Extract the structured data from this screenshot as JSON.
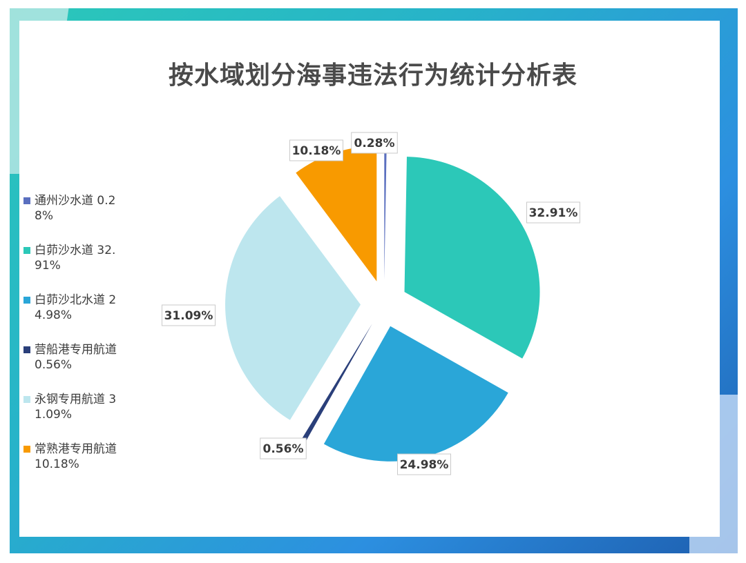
{
  "title": "按水域划分海事违法行为统计分析表",
  "chart_data": {
    "type": "pie",
    "title": "按水域划分海事违法行为统计分析表",
    "legend_position": "left",
    "exploded": true,
    "slices": [
      {
        "name": "通州沙水道",
        "value": 0.28,
        "label": "0.28%",
        "color": "#5a6fbf",
        "legend": "通州沙水道 0.28%"
      },
      {
        "name": "白茆沙水道",
        "value": 32.91,
        "label": "32.91%",
        "color": "#2cc8b8",
        "legend": "白茆沙水道 32.91%"
      },
      {
        "name": "白茆沙北水道",
        "value": 24.98,
        "label": "24.98%",
        "color": "#2aa6d8",
        "legend": "白茆沙北水道 24.98%"
      },
      {
        "name": "营船港专用航道",
        "value": 0.56,
        "label": "0.56%",
        "color": "#2a3f7a",
        "legend": "营船港专用航道 0.56%"
      },
      {
        "name": "永钢专用航道",
        "value": 31.09,
        "label": "31.09%",
        "color": "#bde6ee",
        "legend": "永钢专用航道 31.09%"
      },
      {
        "name": "常熟港专用航道",
        "value": 10.18,
        "label": "10.18%",
        "color": "#f89a00",
        "legend": "常熟港专用航道 10.18%"
      }
    ]
  }
}
